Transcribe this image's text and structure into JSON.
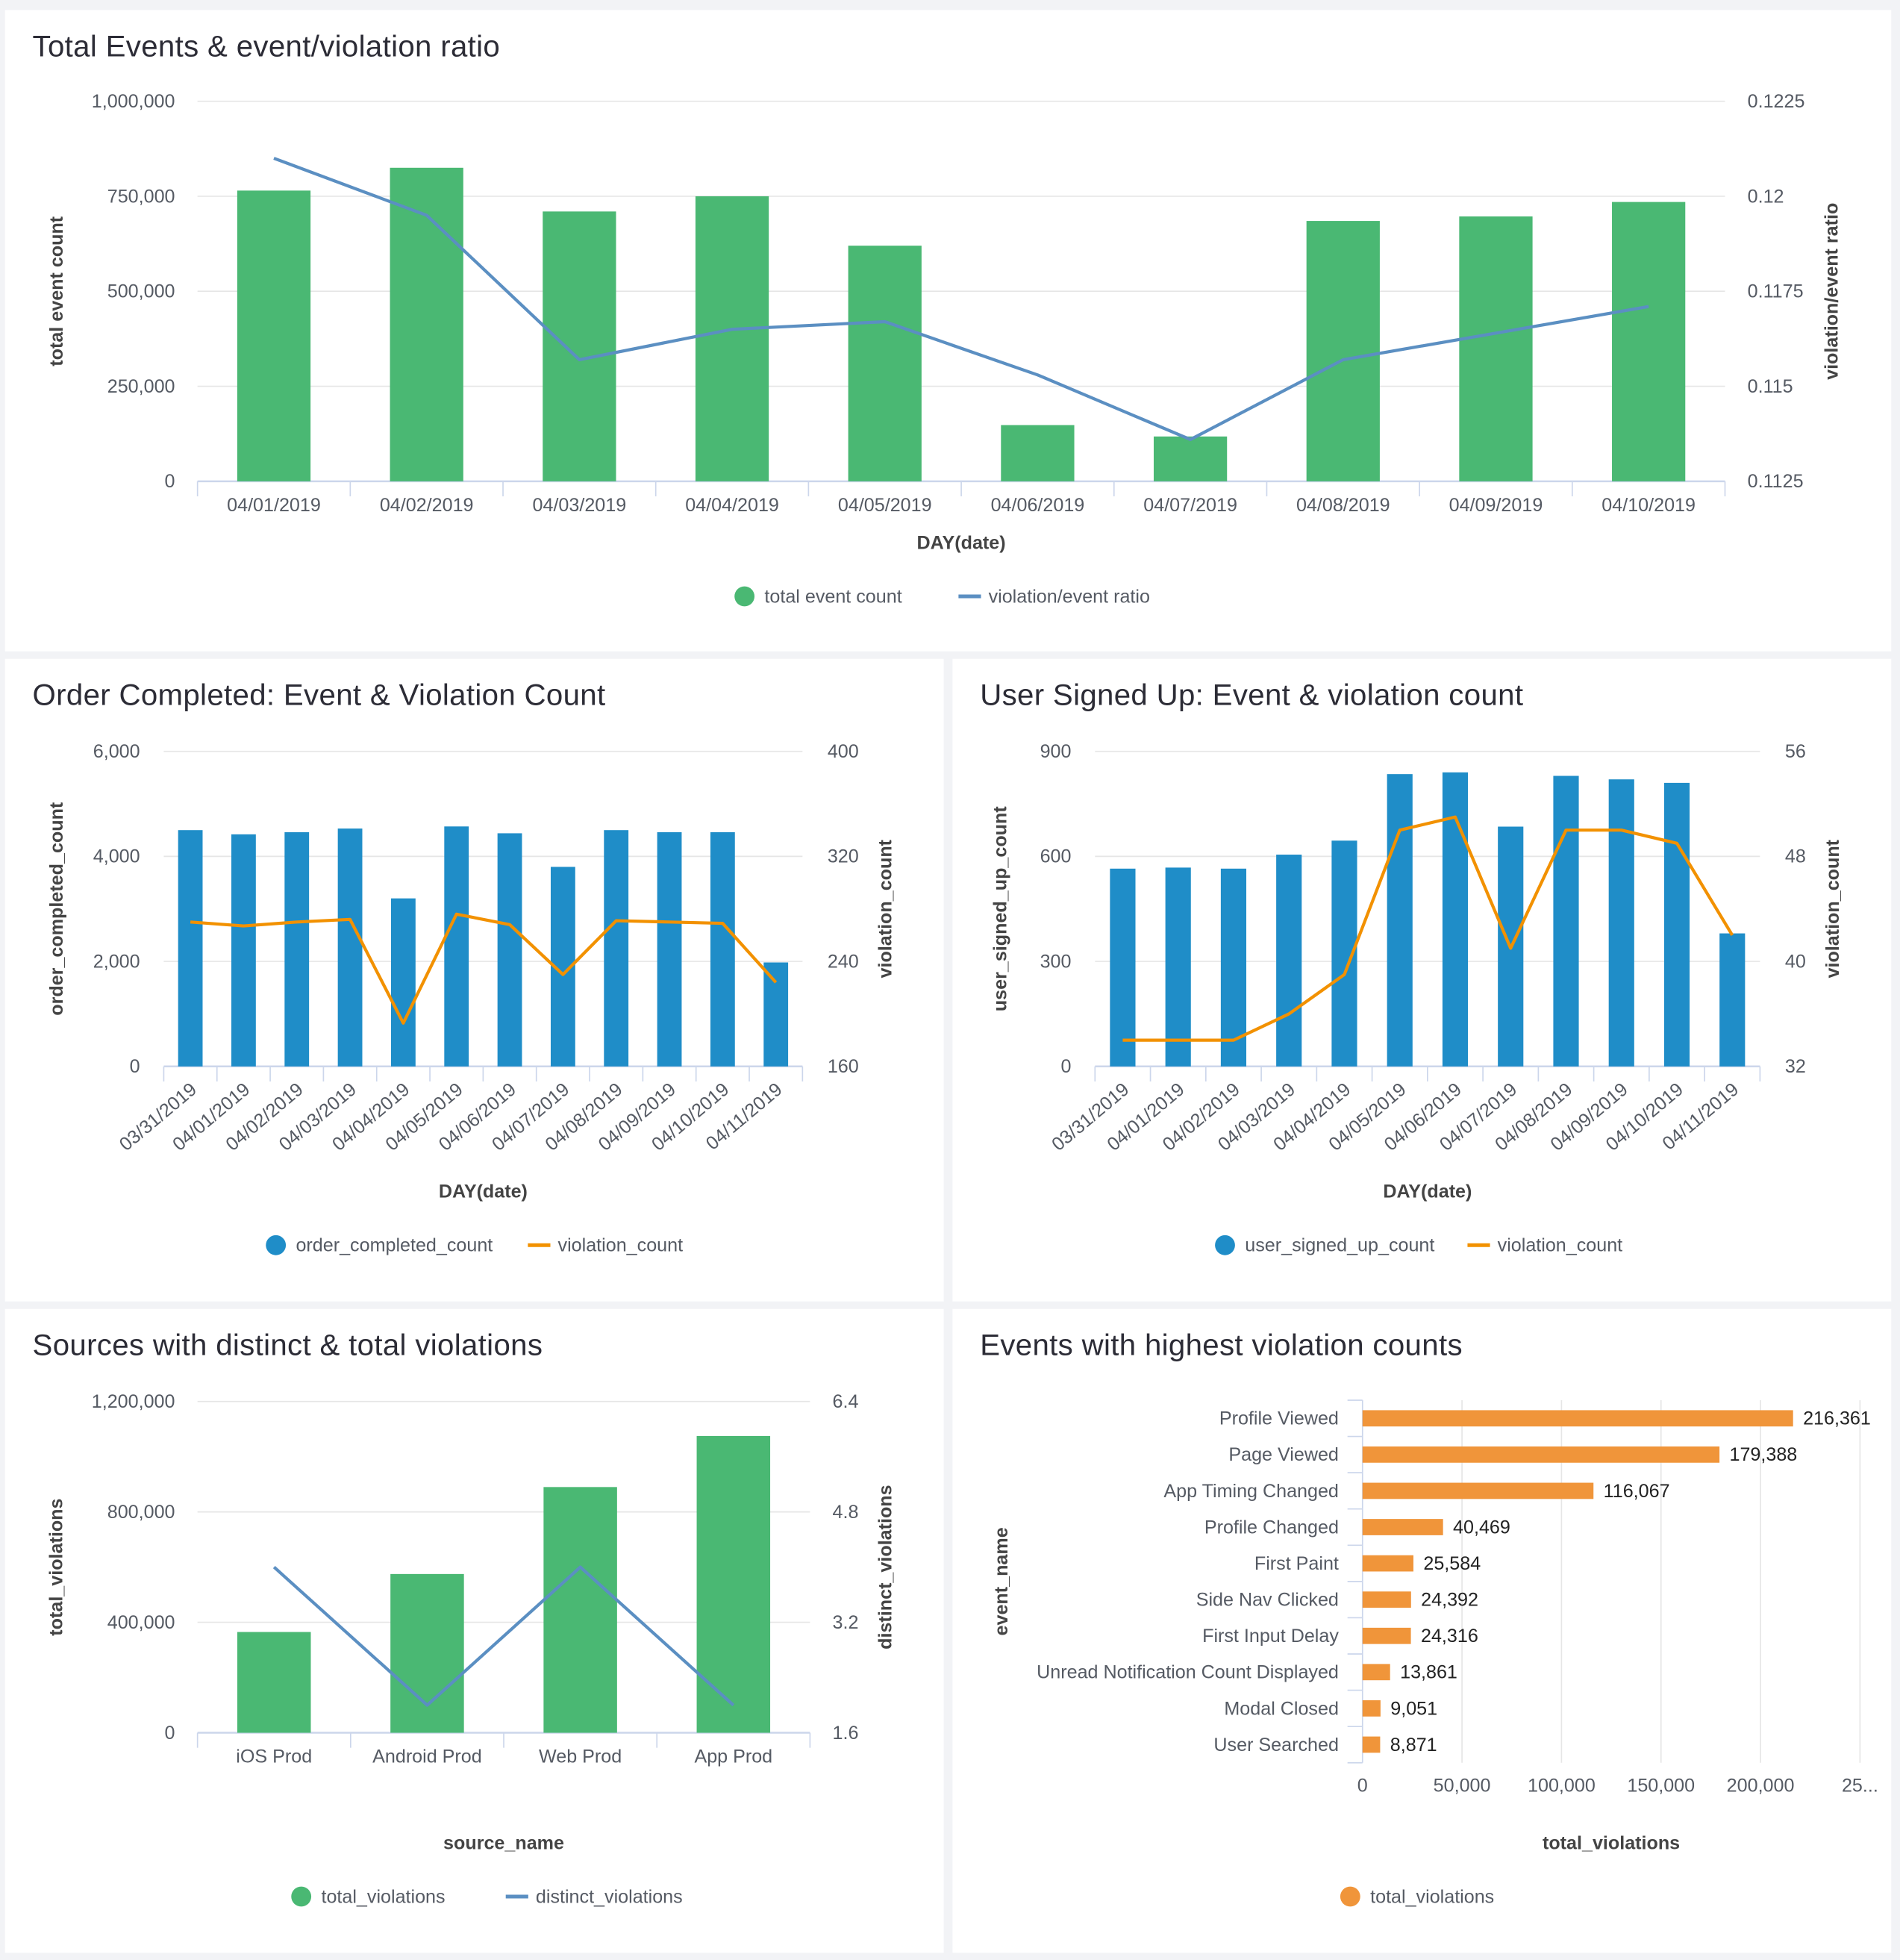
{
  "chart_data": [
    {
      "type": "bar+line",
      "title": "Total Events & event/violation ratio",
      "xlabel": "DAY(date)",
      "ylabel": "total event count",
      "y2label": "violation/event ratio",
      "categories": [
        "04/01/2019",
        "04/02/2019",
        "04/03/2019",
        "04/04/2019",
        "04/05/2019",
        "04/06/2019",
        "04/07/2019",
        "04/08/2019",
        "04/09/2019",
        "04/10/2019"
      ],
      "series": [
        {
          "name": "total event count",
          "kind": "bar",
          "axis": "left",
          "color": "#4ab873",
          "values": [
            765000,
            825000,
            710000,
            750000,
            620000,
            148000,
            118000,
            685000,
            697000,
            735000
          ]
        },
        {
          "name": "violation/event ratio",
          "kind": "line",
          "axis": "right",
          "color": "#5b8fc2",
          "values": [
            0.121,
            0.1195,
            0.1157,
            0.1165,
            0.1167,
            0.1153,
            0.1136,
            0.1157,
            0.1164,
            0.1171
          ]
        }
      ],
      "ylim": [
        0,
        1000000
      ],
      "yticks": [
        "0",
        "250,000",
        "500,000",
        "750,000",
        "1,000,000"
      ],
      "y2lim": [
        0.1125,
        0.1225
      ],
      "y2ticks": [
        "0.1125",
        "0.115",
        "0.1175",
        "0.12",
        "0.1225"
      ],
      "grid": true,
      "legend": "bottom"
    },
    {
      "type": "bar+line",
      "title": "Order Completed: Event & Violation Count",
      "xlabel": "DAY(date)",
      "ylabel": "order_completed_count",
      "y2label": "violation_count",
      "categories": [
        "03/31/2019",
        "04/01/2019",
        "04/02/2019",
        "04/03/2019",
        "04/04/2019",
        "04/05/2019",
        "04/06/2019",
        "04/07/2019",
        "04/08/2019",
        "04/09/2019",
        "04/10/2019",
        "04/11/2019"
      ],
      "series": [
        {
          "name": "order_completed_count",
          "kind": "bar",
          "axis": "left",
          "color": "#1f8dc8",
          "values": [
            4500,
            4420,
            4460,
            4530,
            3200,
            4570,
            4440,
            3800,
            4500,
            4460,
            4460,
            1980
          ]
        },
        {
          "name": "violation_count",
          "kind": "line",
          "axis": "right",
          "color": "#f29100",
          "values": [
            270,
            267,
            270,
            272,
            193,
            276,
            268,
            230,
            271,
            270,
            269,
            224
          ]
        }
      ],
      "ylim": [
        0,
        6000
      ],
      "yticks": [
        "0",
        "2,000",
        "4,000",
        "6,000"
      ],
      "y2lim": [
        160,
        400
      ],
      "y2ticks": [
        "160",
        "240",
        "320",
        "400"
      ],
      "grid": true,
      "legend": "bottom"
    },
    {
      "type": "bar+line",
      "title": "User Signed Up: Event & violation count",
      "xlabel": "DAY(date)",
      "ylabel": "user_signed_up_count",
      "y2label": "violation_count",
      "categories": [
        "03/31/2019",
        "04/01/2019",
        "04/02/2019",
        "04/03/2019",
        "04/04/2019",
        "04/05/2019",
        "04/06/2019",
        "04/07/2019",
        "04/08/2019",
        "04/09/2019",
        "04/10/2019",
        "04/11/2019"
      ],
      "series": [
        {
          "name": "user_signed_up_count",
          "kind": "bar",
          "axis": "left",
          "color": "#1f8dc8",
          "values": [
            565,
            568,
            565,
            605,
            645,
            835,
            840,
            685,
            830,
            820,
            810,
            380
          ]
        },
        {
          "name": "violation_count",
          "kind": "line",
          "axis": "right",
          "color": "#f29100",
          "values": [
            34,
            34,
            34,
            36,
            39,
            50,
            51,
            41,
            50,
            50,
            49,
            42
          ]
        }
      ],
      "ylim": [
        0,
        900
      ],
      "yticks": [
        "0",
        "300",
        "600",
        "900"
      ],
      "y2lim": [
        32,
        56
      ],
      "y2ticks": [
        "32",
        "40",
        "48",
        "56"
      ],
      "grid": true,
      "legend": "bottom"
    },
    {
      "type": "bar+line",
      "title": "Sources with distinct & total violations",
      "xlabel": "source_name",
      "ylabel": "total_violations",
      "y2label": "distinct_violations",
      "categories": [
        "iOS Prod",
        "Android Prod",
        "Web Prod",
        "App Prod"
      ],
      "series": [
        {
          "name": "total_violations",
          "kind": "bar",
          "axis": "left",
          "color": "#4ab873",
          "values": [
            365000,
            575000,
            890000,
            1075000
          ]
        },
        {
          "name": "distinct_violations",
          "kind": "line",
          "axis": "right",
          "color": "#5b8fc2",
          "values": [
            4,
            2,
            4,
            2
          ]
        }
      ],
      "ylim": [
        0,
        1200000
      ],
      "yticks": [
        "0",
        "400,000",
        "800,000",
        "1,200,000"
      ],
      "y2lim": [
        1.6,
        6.4
      ],
      "y2ticks": [
        "1.6",
        "3.2",
        "4.8",
        "6.4"
      ],
      "grid": true,
      "legend": "bottom"
    },
    {
      "type": "bar",
      "orientation": "horizontal",
      "title": "Events with highest violation counts",
      "xlabel": "total_violations",
      "ylabel": "event_name",
      "categories": [
        "Profile Viewed",
        "Page Viewed",
        "App Timing Changed",
        "Profile Changed",
        "First Paint",
        "Side Nav Clicked",
        "First Input Delay",
        "Unread Notification Count Displayed",
        "Modal Closed",
        "User Searched"
      ],
      "series": [
        {
          "name": "total_violations",
          "kind": "bar",
          "color": "#f0953a",
          "values": [
            216361,
            179388,
            116067,
            40469,
            25584,
            24392,
            24316,
            13861,
            9051,
            8871
          ],
          "labels": [
            "216,361",
            "179,388",
            "116,067",
            "40,469",
            "25,584",
            "24,392",
            "24,316",
            "13,861",
            "9,051",
            "8,871"
          ]
        }
      ],
      "xlim": [
        0,
        250000
      ],
      "xticks": [
        "0",
        "50,000",
        "100,000",
        "150,000",
        "200,000",
        "25..."
      ],
      "grid": true,
      "legend": "bottom"
    }
  ]
}
